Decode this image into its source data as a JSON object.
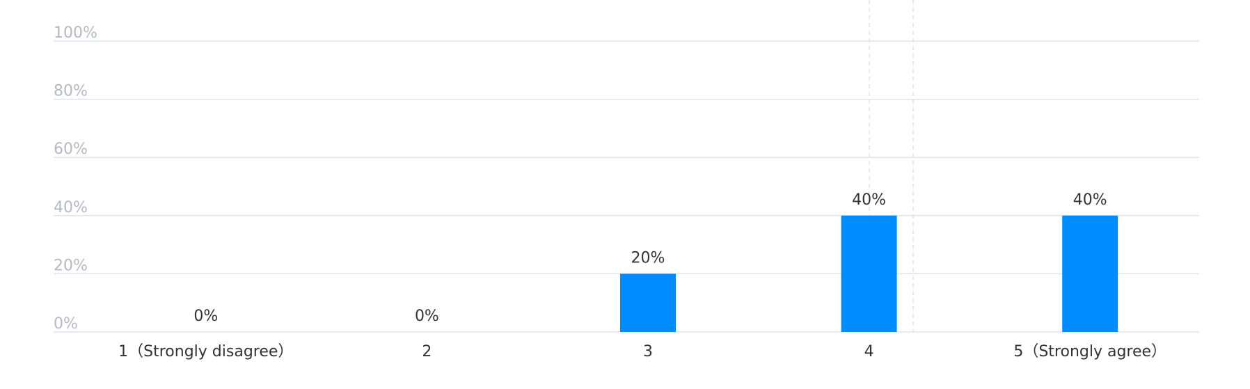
{
  "chart_data": {
    "type": "bar",
    "categories": [
      "1（Strongly disagree）",
      "2",
      "3",
      "4",
      "5（Strongly agree）"
    ],
    "values": [
      0,
      0,
      20,
      40,
      40
    ],
    "value_labels": [
      "0%",
      "0%",
      "20%",
      "40%",
      "40%"
    ],
    "color": "#008cff",
    "ylim": [
      0,
      100
    ],
    "yticks": [
      {
        "value": 0,
        "label": "0%"
      },
      {
        "value": 20,
        "label": "20%"
      },
      {
        "value": 40,
        "label": "40%"
      },
      {
        "value": 60,
        "label": "60%"
      },
      {
        "value": 80,
        "label": "80%"
      },
      {
        "value": 100,
        "label": "100%"
      }
    ],
    "grid": true
  }
}
